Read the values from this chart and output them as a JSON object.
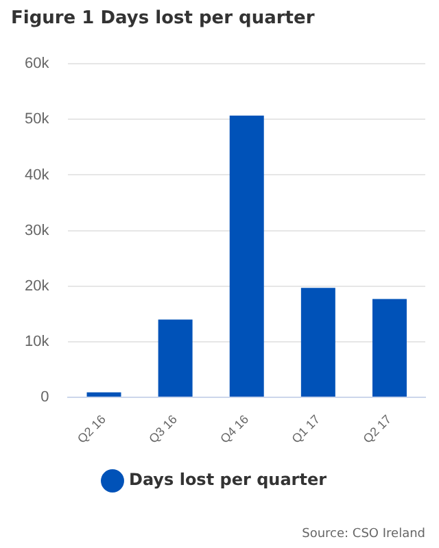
{
  "chart_data": {
    "type": "bar",
    "title": "Figure 1 Days lost per quarter",
    "categories": [
      "Q2 16",
      "Q3 16",
      "Q4 16",
      "Q1 17",
      "Q2 17"
    ],
    "series": [
      {
        "name": "Days lost per quarter",
        "color": "#0052b8",
        "values": [
          900,
          14000,
          50700,
          19700,
          17700
        ]
      }
    ],
    "ylim": [
      0,
      60000
    ],
    "yticks": [
      {
        "value": 0,
        "label": "0"
      },
      {
        "value": 10000,
        "label": "10k"
      },
      {
        "value": 20000,
        "label": "20k"
      },
      {
        "value": 30000,
        "label": "30k"
      },
      {
        "value": 40000,
        "label": "40k"
      },
      {
        "value": 50000,
        "label": "50k"
      },
      {
        "value": 60000,
        "label": "60k"
      }
    ],
    "grid": "y",
    "legend": "bottom",
    "marker": "circle",
    "annotations": [
      "Source: CSO Ireland"
    ]
  }
}
